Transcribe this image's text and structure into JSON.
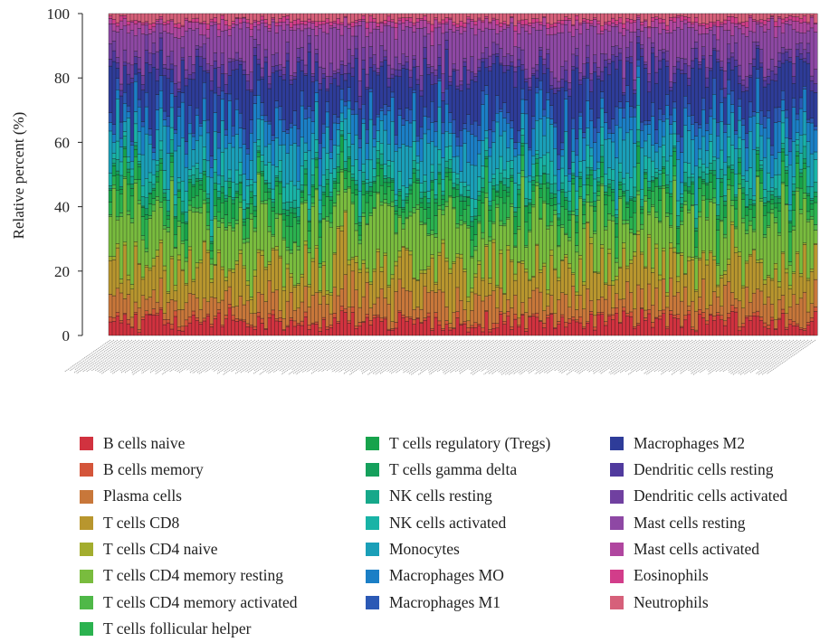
{
  "chart_data": {
    "type": "bar",
    "stacked": true,
    "normalized_to_percent": true,
    "ylabel": "Relative percent (%)",
    "xlabel": "",
    "ylim": [
      0,
      100
    ],
    "yticks": [
      0,
      20,
      40,
      60,
      80,
      100
    ],
    "sample_count": 196,
    "sample_labels_legible": false,
    "legend_position": "bottom",
    "grid": false,
    "series": [
      {
        "name": "B cells naive",
        "color": "#d1323f",
        "mean_percent": 4
      },
      {
        "name": "B cells memory",
        "color": "#d4553a",
        "mean_percent": 1
      },
      {
        "name": "Plasma cells",
        "color": "#c8773a",
        "mean_percent": 6
      },
      {
        "name": "T cells CD8",
        "color": "#b8962e",
        "mean_percent": 10
      },
      {
        "name": "T cells CD4 naive",
        "color": "#a3ad2e",
        "mean_percent": 1
      },
      {
        "name": "T cells CD4 memory resting",
        "color": "#79bc3e",
        "mean_percent": 14
      },
      {
        "name": "T cells CD4 memory activated",
        "color": "#4fb848",
        "mean_percent": 1
      },
      {
        "name": "T cells follicular helper",
        "color": "#2bb24f",
        "mean_percent": 5
      },
      {
        "name": "T cells regulatory (Tregs)",
        "color": "#17a34c",
        "mean_percent": 3
      },
      {
        "name": "T cells gamma delta",
        "color": "#15a05c",
        "mean_percent": 1
      },
      {
        "name": "NK cells resting",
        "color": "#16a88a",
        "mean_percent": 2
      },
      {
        "name": "NK cells activated",
        "color": "#19b3a6",
        "mean_percent": 4
      },
      {
        "name": "Monocytes",
        "color": "#1a9fb8",
        "mean_percent": 8
      },
      {
        "name": "Macrophages MO",
        "color": "#1b7fc6",
        "mean_percent": 6
      },
      {
        "name": "Macrophages M1",
        "color": "#2b59b5",
        "mean_percent": 3
      },
      {
        "name": "Macrophages M2",
        "color": "#2e3c99",
        "mean_percent": 12
      },
      {
        "name": "Dendritic cells resting",
        "color": "#503a9e",
        "mean_percent": 2
      },
      {
        "name": "Dendritic cells activated",
        "color": "#7040a0",
        "mean_percent": 3
      },
      {
        "name": "Mast cells resting",
        "color": "#8e48a4",
        "mean_percent": 9
      },
      {
        "name": "Mast cells activated",
        "color": "#b0469f",
        "mean_percent": 2
      },
      {
        "name": "Eosinophils",
        "color": "#d23d8a",
        "mean_percent": 1
      },
      {
        "name": "Neutrophils",
        "color": "#d6607a",
        "mean_percent": 2
      }
    ],
    "legend_columns": [
      [
        0,
        1,
        2,
        3,
        4,
        5,
        6,
        7
      ],
      [
        8,
        9,
        10,
        11,
        12,
        13,
        14
      ],
      [
        15,
        16,
        17,
        18,
        19,
        20,
        21
      ]
    ]
  }
}
